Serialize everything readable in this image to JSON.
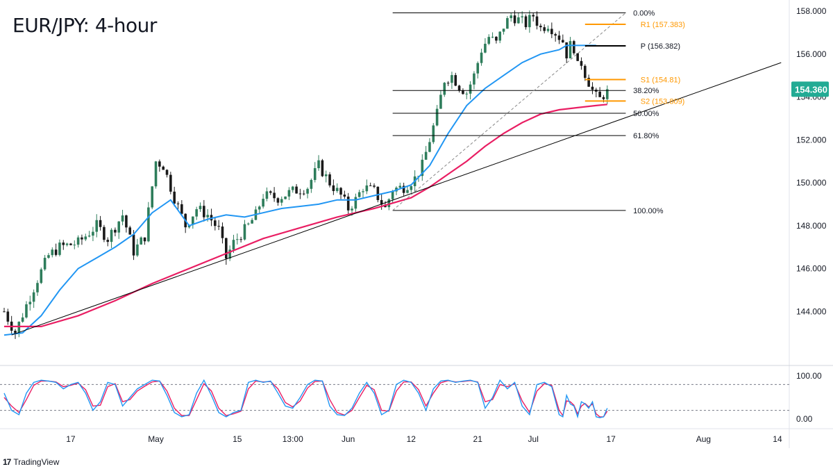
{
  "header": {
    "title": "EUR/JPY: 4-hour"
  },
  "footer": {
    "brand": "TradingView",
    "brand_logo": "17"
  },
  "colors": {
    "up_candle": "#2e7d5b",
    "down_candle": "#1a1a1a",
    "ma_fast": "#2196f3",
    "ma_slow": "#e91e63",
    "pivot_levels": "#ff9800",
    "pivot_line": "#000000",
    "fib_lines": "#000000",
    "trendline": "#000000",
    "price_badge": "#22ab94",
    "stoch_k": "#2196f3",
    "stoch_d": "#e91e63"
  },
  "chart_data": {
    "type": "candlestick",
    "title": "EUR/JPY: 4-hour",
    "symbol": "EUR/JPY",
    "timeframe": "4-hour",
    "current_price": 154.36,
    "current_price_label": "154.360",
    "ylim": [
      142.0,
      158.0
    ],
    "y_ticks": [
      {
        "value": 158,
        "label": "158.000"
      },
      {
        "value": 156,
        "label": "156.000"
      },
      {
        "value": 154,
        "label": "154.000"
      },
      {
        "value": 152,
        "label": "152.000"
      },
      {
        "value": 150,
        "label": "150.000"
      },
      {
        "value": 148,
        "label": "148.000"
      },
      {
        "value": 146,
        "label": "146.000"
      },
      {
        "value": 144,
        "label": "144.000"
      }
    ],
    "x_ticks": [
      {
        "label": "17",
        "bar": 18
      },
      {
        "label": "May",
        "bar": 41
      },
      {
        "label": "15",
        "bar": 63
      },
      {
        "label": "13:00",
        "bar": 78
      },
      {
        "label": "Jun",
        "bar": 93
      },
      {
        "label": "12",
        "bar": 110
      },
      {
        "label": "21",
        "bar": 128
      },
      {
        "label": "Jul",
        "bar": 143
      },
      {
        "label": "17",
        "bar": 164
      },
      {
        "label": "Aug",
        "bar": 189
      },
      {
        "label": "14",
        "bar": 209
      }
    ],
    "close_path": [
      [
        0,
        144.0
      ],
      [
        3,
        143.0
      ],
      [
        6,
        144.3
      ],
      [
        9,
        145.5
      ],
      [
        12,
        146.6
      ],
      [
        15,
        147.0
      ],
      [
        20,
        147.2
      ],
      [
        25,
        148.0
      ],
      [
        28,
        147.4
      ],
      [
        32,
        148.5
      ],
      [
        35,
        146.8
      ],
      [
        38,
        147.5
      ],
      [
        41,
        151.0
      ],
      [
        43,
        150.8
      ],
      [
        46,
        149.3
      ],
      [
        49,
        148.0
      ],
      [
        52,
        148.8
      ],
      [
        55,
        148.5
      ],
      [
        58,
        147.8
      ],
      [
        60,
        146.5
      ],
      [
        62,
        147.2
      ],
      [
        64,
        147.6
      ],
      [
        66,
        148.0
      ],
      [
        68,
        148.5
      ],
      [
        70,
        149.4
      ],
      [
        74,
        149.3
      ],
      [
        78,
        149.6
      ],
      [
        82,
        149.8
      ],
      [
        85,
        150.8
      ],
      [
        88,
        150.0
      ],
      [
        91,
        149.4
      ],
      [
        93,
        148.8
      ],
      [
        95,
        149.2
      ],
      [
        97,
        149.8
      ],
      [
        100,
        149.6
      ],
      [
        103,
        148.8
      ],
      [
        105,
        149.7
      ],
      [
        108,
        149.8
      ],
      [
        111,
        150.2
      ],
      [
        113,
        150.8
      ],
      [
        115,
        152.0
      ],
      [
        117,
        153.2
      ],
      [
        119,
        154.8
      ],
      [
        121,
        155.0
      ],
      [
        123,
        154.5
      ],
      [
        125,
        154.2
      ],
      [
        127,
        155.0
      ],
      [
        129,
        156.2
      ],
      [
        131,
        156.8
      ],
      [
        133,
        156.5
      ],
      [
        135,
        157.3
      ],
      [
        137,
        157.8
      ],
      [
        139,
        157.6
      ],
      [
        141,
        157.4
      ],
      [
        143,
        157.8
      ],
      [
        145,
        157.2
      ],
      [
        147,
        157.4
      ],
      [
        149,
        157.0
      ],
      [
        151,
        156.6
      ],
      [
        152,
        156.0
      ],
      [
        153,
        156.4
      ],
      [
        154,
        156.3
      ],
      [
        155,
        155.4
      ],
      [
        156,
        155.6
      ],
      [
        157,
        155.1
      ],
      [
        158,
        154.7
      ],
      [
        159,
        154.3
      ],
      [
        160,
        154.0
      ],
      [
        161,
        153.9
      ],
      [
        162,
        154.1
      ],
      [
        163,
        154.36
      ]
    ],
    "ma_fast": {
      "name": "",
      "points": [
        [
          0,
          142.9
        ],
        [
          5,
          143.0
        ],
        [
          10,
          143.8
        ],
        [
          15,
          145.0
        ],
        [
          20,
          146.0
        ],
        [
          25,
          146.5
        ],
        [
          30,
          147.0
        ],
        [
          35,
          147.6
        ],
        [
          40,
          148.6
        ],
        [
          45,
          149.2
        ],
        [
          50,
          148.0
        ],
        [
          55,
          148.3
        ],
        [
          60,
          148.5
        ],
        [
          65,
          148.4
        ],
        [
          70,
          148.6
        ],
        [
          75,
          148.8
        ],
        [
          80,
          148.9
        ],
        [
          85,
          149.0
        ],
        [
          90,
          149.2
        ],
        [
          95,
          149.2
        ],
        [
          100,
          149.4
        ],
        [
          105,
          149.6
        ],
        [
          110,
          149.9
        ],
        [
          115,
          150.8
        ],
        [
          120,
          152.3
        ],
        [
          125,
          153.6
        ],
        [
          130,
          154.4
        ],
        [
          135,
          155.0
        ],
        [
          140,
          155.6
        ],
        [
          145,
          156.0
        ],
        [
          150,
          156.2
        ],
        [
          152,
          156.4
        ],
        [
          155,
          156.4
        ],
        [
          158,
          156.4
        ],
        [
          160,
          156.4
        ]
      ]
    },
    "ma_slow": {
      "name": "",
      "points": [
        [
          0,
          143.3
        ],
        [
          10,
          143.3
        ],
        [
          20,
          143.8
        ],
        [
          30,
          144.5
        ],
        [
          40,
          145.3
        ],
        [
          50,
          146.0
        ],
        [
          60,
          146.7
        ],
        [
          70,
          147.4
        ],
        [
          80,
          147.9
        ],
        [
          90,
          148.4
        ],
        [
          100,
          148.8
        ],
        [
          110,
          149.3
        ],
        [
          115,
          149.8
        ],
        [
          120,
          150.4
        ],
        [
          125,
          151.0
        ],
        [
          130,
          151.7
        ],
        [
          135,
          152.3
        ],
        [
          140,
          152.8
        ],
        [
          145,
          153.2
        ],
        [
          150,
          153.4
        ],
        [
          155,
          153.5
        ],
        [
          160,
          153.6
        ],
        [
          163,
          153.65
        ]
      ]
    },
    "trendline": {
      "from": [
        2,
        142.9
      ],
      "to": [
        210,
        155.6
      ]
    },
    "fibonacci": {
      "start_bar": 105,
      "end_bar": 168,
      "label_bar": 170,
      "levels": [
        {
          "label": "0.00%",
          "value": 157.92
        },
        {
          "label": "38.20%",
          "value": 154.3
        },
        {
          "label": "50.00%",
          "value": 153.24
        },
        {
          "label": "61.80%",
          "value": 152.2
        },
        {
          "label": "100.00%",
          "value": 148.71
        }
      ],
      "diagonal": {
        "from": [
          105,
          148.71
        ],
        "to": [
          168,
          157.92
        ]
      }
    },
    "pivot_levels": [
      {
        "label": "R1 (157.383)",
        "value": 157.383,
        "color": "#ff9800"
      },
      {
        "label": "P (156.382)",
        "value": 156.382,
        "color": "#000000"
      },
      {
        "label": "S1 (154.81)",
        "value": 154.81,
        "color": "#ff9800"
      },
      {
        "label": "S2 (153.809)",
        "value": 153.809,
        "color": "#ff9800"
      }
    ],
    "pivot_start_bar": 157,
    "pivot_end_bar": 168,
    "pivot_label_bar": 172,
    "stochastic": {
      "ylim": [
        0,
        100
      ],
      "ticks": [
        {
          "value": 100,
          "label": "100.00"
        },
        {
          "value": 0,
          "label": "0.00"
        }
      ],
      "overbought": 80,
      "oversold": 20,
      "k": [
        [
          0,
          60
        ],
        [
          2,
          20
        ],
        [
          4,
          10
        ],
        [
          6,
          60
        ],
        [
          8,
          85
        ],
        [
          10,
          90
        ],
        [
          12,
          88
        ],
        [
          14,
          85
        ],
        [
          16,
          70
        ],
        [
          18,
          80
        ],
        [
          20,
          85
        ],
        [
          22,
          60
        ],
        [
          24,
          20
        ],
        [
          26,
          40
        ],
        [
          28,
          85
        ],
        [
          30,
          80
        ],
        [
          32,
          30
        ],
        [
          34,
          50
        ],
        [
          36,
          70
        ],
        [
          38,
          80
        ],
        [
          40,
          90
        ],
        [
          42,
          88
        ],
        [
          44,
          55
        ],
        [
          46,
          15
        ],
        [
          48,
          5
        ],
        [
          50,
          10
        ],
        [
          52,
          60
        ],
        [
          54,
          90
        ],
        [
          56,
          55
        ],
        [
          58,
          15
        ],
        [
          60,
          5
        ],
        [
          62,
          15
        ],
        [
          64,
          20
        ],
        [
          66,
          85
        ],
        [
          68,
          90
        ],
        [
          70,
          85
        ],
        [
          72,
          88
        ],
        [
          74,
          60
        ],
        [
          76,
          30
        ],
        [
          78,
          25
        ],
        [
          80,
          50
        ],
        [
          82,
          80
        ],
        [
          84,
          90
        ],
        [
          86,
          88
        ],
        [
          88,
          30
        ],
        [
          90,
          10
        ],
        [
          92,
          8
        ],
        [
          94,
          25
        ],
        [
          96,
          60
        ],
        [
          98,
          85
        ],
        [
          100,
          60
        ],
        [
          102,
          10
        ],
        [
          104,
          20
        ],
        [
          106,
          80
        ],
        [
          108,
          90
        ],
        [
          110,
          85
        ],
        [
          112,
          60
        ],
        [
          114,
          20
        ],
        [
          116,
          70
        ],
        [
          118,
          88
        ],
        [
          120,
          90
        ],
        [
          122,
          85
        ],
        [
          124,
          88
        ],
        [
          126,
          90
        ],
        [
          128,
          85
        ],
        [
          130,
          25
        ],
        [
          132,
          50
        ],
        [
          134,
          90
        ],
        [
          136,
          70
        ],
        [
          138,
          85
        ],
        [
          140,
          30
        ],
        [
          142,
          10
        ],
        [
          144,
          80
        ],
        [
          146,
          85
        ],
        [
          148,
          75
        ],
        [
          150,
          10
        ],
        [
          151,
          5
        ],
        [
          152,
          55
        ],
        [
          153,
          35
        ],
        [
          154,
          30
        ],
        [
          155,
          5
        ],
        [
          156,
          40
        ],
        [
          157,
          35
        ],
        [
          158,
          25
        ],
        [
          159,
          40
        ],
        [
          160,
          5
        ],
        [
          161,
          3
        ],
        [
          162,
          5
        ],
        [
          163,
          25
        ]
      ],
      "d": [
        [
          0,
          50
        ],
        [
          2,
          30
        ],
        [
          4,
          15
        ],
        [
          6,
          45
        ],
        [
          8,
          78
        ],
        [
          10,
          88
        ],
        [
          12,
          88
        ],
        [
          14,
          86
        ],
        [
          16,
          75
        ],
        [
          18,
          78
        ],
        [
          20,
          83
        ],
        [
          22,
          68
        ],
        [
          24,
          30
        ],
        [
          26,
          32
        ],
        [
          28,
          75
        ],
        [
          30,
          82
        ],
        [
          32,
          40
        ],
        [
          34,
          45
        ],
        [
          36,
          65
        ],
        [
          38,
          76
        ],
        [
          40,
          86
        ],
        [
          42,
          88
        ],
        [
          44,
          65
        ],
        [
          46,
          25
        ],
        [
          48,
          8
        ],
        [
          50,
          8
        ],
        [
          52,
          45
        ],
        [
          54,
          82
        ],
        [
          56,
          65
        ],
        [
          58,
          25
        ],
        [
          60,
          8
        ],
        [
          62,
          12
        ],
        [
          64,
          18
        ],
        [
          66,
          70
        ],
        [
          68,
          88
        ],
        [
          70,
          86
        ],
        [
          72,
          87
        ],
        [
          74,
          70
        ],
        [
          76,
          38
        ],
        [
          78,
          28
        ],
        [
          80,
          42
        ],
        [
          82,
          72
        ],
        [
          84,
          87
        ],
        [
          86,
          88
        ],
        [
          88,
          45
        ],
        [
          90,
          15
        ],
        [
          92,
          9
        ],
        [
          94,
          20
        ],
        [
          96,
          50
        ],
        [
          98,
          78
        ],
        [
          100,
          68
        ],
        [
          102,
          20
        ],
        [
          104,
          18
        ],
        [
          106,
          65
        ],
        [
          108,
          86
        ],
        [
          110,
          86
        ],
        [
          112,
          68
        ],
        [
          114,
          30
        ],
        [
          116,
          60
        ],
        [
          118,
          84
        ],
        [
          120,
          89
        ],
        [
          122,
          86
        ],
        [
          124,
          87
        ],
        [
          126,
          89
        ],
        [
          128,
          86
        ],
        [
          130,
          40
        ],
        [
          132,
          45
        ],
        [
          134,
          80
        ],
        [
          136,
          75
        ],
        [
          138,
          82
        ],
        [
          140,
          42
        ],
        [
          142,
          15
        ],
        [
          144,
          65
        ],
        [
          146,
          82
        ],
        [
          148,
          78
        ],
        [
          150,
          20
        ],
        [
          151,
          8
        ],
        [
          152,
          42
        ],
        [
          153,
          40
        ],
        [
          154,
          32
        ],
        [
          155,
          12
        ],
        [
          156,
          30
        ],
        [
          157,
          36
        ],
        [
          158,
          28
        ],
        [
          159,
          35
        ],
        [
          160,
          12
        ],
        [
          161,
          5
        ],
        [
          162,
          5
        ],
        [
          163,
          18
        ]
      ]
    }
  }
}
